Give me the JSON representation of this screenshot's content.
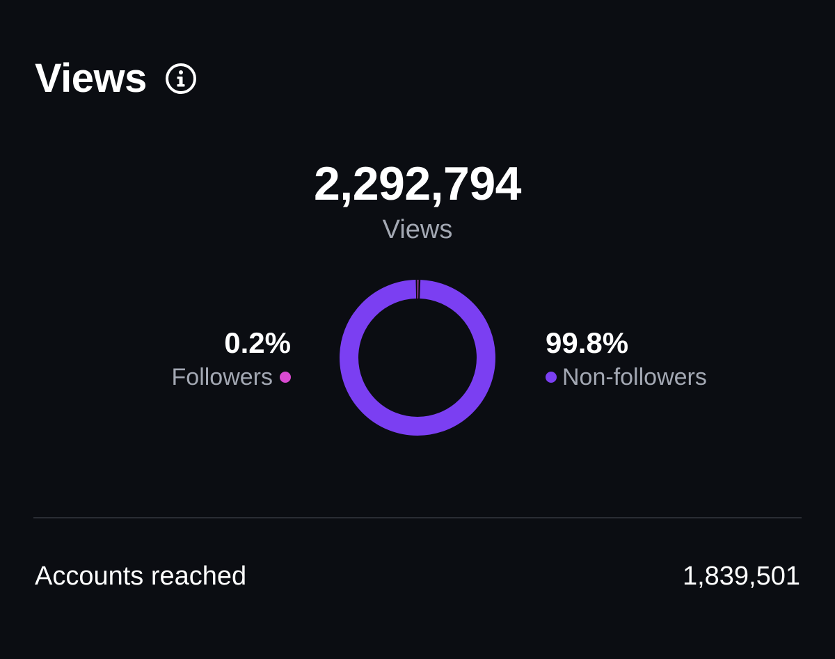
{
  "header": {
    "title": "Views",
    "info_icon": "info-circle-icon"
  },
  "summary": {
    "total_views": "2,292,794",
    "total_label": "Views"
  },
  "chart_data": {
    "type": "pie",
    "style": "donut",
    "categories": [
      "Followers",
      "Non-followers"
    ],
    "values": [
      0.2,
      99.8
    ],
    "labels": [
      "0.2%",
      "99.8%"
    ],
    "colors": [
      "#d94ad1",
      "#7b3ff2"
    ]
  },
  "breakdown": {
    "followers": {
      "percent": "0.2%",
      "label": "Followers",
      "color": "#d94ad1"
    },
    "non_followers": {
      "percent": "99.8%",
      "label": "Non-followers",
      "color": "#7b3ff2"
    }
  },
  "reach": {
    "label": "Accounts reached",
    "value": "1,839,501"
  }
}
